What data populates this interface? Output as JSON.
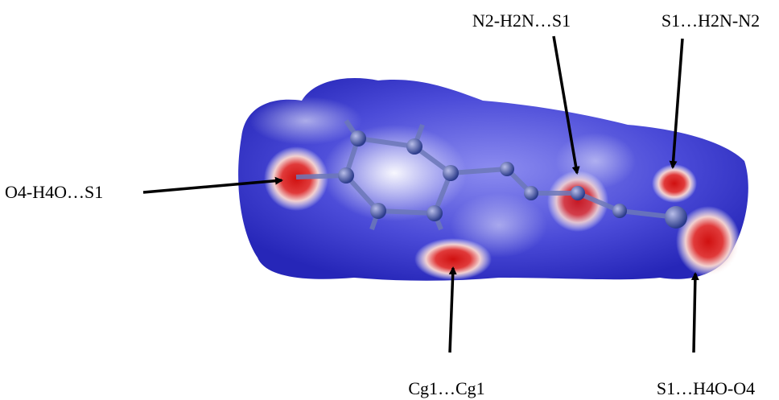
{
  "labels": [
    "N2-H2N…S1",
    "S1…H2N-N2",
    "O4-H4O…S1",
    "Cg1…Cg1",
    "S1…H4O-O4"
  ]
}
